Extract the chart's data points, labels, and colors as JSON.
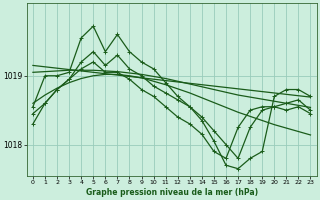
{
  "title": "Graphe pression niveau de la mer (hPa)",
  "bg_color": "#cceedd",
  "grid_color": "#99ccbb",
  "line_color": "#1a5c1a",
  "ylim": [
    1017.55,
    1020.05
  ],
  "yticks": [
    1018,
    1019
  ],
  "xlim": [
    -0.5,
    23.5
  ],
  "xticks": [
    0,
    1,
    2,
    3,
    4,
    5,
    6,
    7,
    8,
    9,
    10,
    11,
    12,
    13,
    14,
    15,
    16,
    17,
    18,
    19,
    20,
    21,
    22,
    23
  ],
  "series": [
    {
      "x": [
        0,
        1,
        2,
        3,
        4,
        5,
        6,
        7,
        8,
        9,
        10,
        11,
        12,
        13,
        14,
        15,
        16,
        17,
        18,
        19,
        20,
        21,
        22,
        23
      ],
      "y": [
        1019.15,
        1019.13,
        1019.11,
        1019.09,
        1019.07,
        1019.05,
        1019.03,
        1019.01,
        1018.99,
        1018.97,
        1018.95,
        1018.93,
        1018.91,
        1018.89,
        1018.87,
        1018.85,
        1018.83,
        1018.81,
        1018.79,
        1018.77,
        1018.75,
        1018.73,
        1018.71,
        1018.69
      ],
      "marker": null,
      "lw": 0.9
    },
    {
      "x": [
        0,
        1,
        2,
        3,
        4,
        5,
        6,
        7,
        8,
        9,
        10,
        11,
        12,
        13,
        14,
        15,
        16,
        17,
        18,
        19,
        20,
        21,
        22,
        23
      ],
      "y": [
        1019.05,
        1019.06,
        1019.07,
        1019.08,
        1019.08,
        1019.08,
        1019.07,
        1019.06,
        1019.04,
        1019.02,
        1018.99,
        1018.96,
        1018.92,
        1018.88,
        1018.84,
        1018.8,
        1018.76,
        1018.72,
        1018.69,
        1018.66,
        1018.63,
        1018.6,
        1018.57,
        1018.54
      ],
      "marker": null,
      "lw": 0.9
    },
    {
      "x": [
        0,
        1,
        2,
        3,
        4,
        5,
        6,
        7,
        8,
        9,
        10,
        11,
        12,
        13,
        14,
        15,
        16,
        17,
        18,
        19,
        20,
        21,
        22,
        23
      ],
      "y": [
        1018.6,
        1018.72,
        1018.82,
        1018.9,
        1018.96,
        1019.0,
        1019.02,
        1019.02,
        1019.0,
        1018.97,
        1018.92,
        1018.87,
        1018.81,
        1018.75,
        1018.68,
        1018.61,
        1018.54,
        1018.47,
        1018.41,
        1018.35,
        1018.29,
        1018.24,
        1018.19,
        1018.14
      ],
      "marker": null,
      "lw": 0.9
    },
    {
      "x": [
        0,
        1,
        2,
        3,
        4,
        5,
        6,
        7,
        8,
        9,
        10,
        11,
        12,
        13,
        14,
        15,
        16,
        17,
        18,
        19,
        20,
        21,
        22,
        23
      ],
      "y": [
        1018.55,
        1019.0,
        1019.0,
        1019.05,
        1019.55,
        1019.72,
        1019.35,
        1019.6,
        1019.35,
        1019.2,
        1019.1,
        1018.9,
        1018.7,
        1018.55,
        1018.35,
        1018.05,
        1017.7,
        1017.65,
        1017.8,
        1017.9,
        1018.7,
        1018.8,
        1018.8,
        1018.7
      ],
      "marker": "+",
      "lw": 0.9
    },
    {
      "x": [
        0,
        1,
        2,
        3,
        4,
        5,
        6,
        7,
        8,
        9,
        10,
        11,
        12,
        13,
        14,
        15,
        16,
        17,
        18,
        19,
        20,
        21,
        22,
        23
      ],
      "y": [
        1018.45,
        1018.6,
        1018.8,
        1018.95,
        1019.1,
        1019.2,
        1019.05,
        1019.05,
        1018.95,
        1018.8,
        1018.7,
        1018.55,
        1018.4,
        1018.3,
        1018.15,
        1017.9,
        1017.8,
        1018.25,
        1018.5,
        1018.55,
        1018.55,
        1018.5,
        1018.55,
        1018.45
      ],
      "marker": "+",
      "lw": 0.9
    },
    {
      "x": [
        0,
        1,
        2,
        3,
        4,
        5,
        6,
        7,
        8,
        9,
        10,
        11,
        12,
        13,
        14,
        15,
        16,
        17,
        18,
        19,
        20,
        21,
        22,
        23
      ],
      "y": [
        1018.3,
        1018.6,
        1018.8,
        1018.95,
        1019.2,
        1019.35,
        1019.15,
        1019.3,
        1019.1,
        1019.0,
        1018.85,
        1018.75,
        1018.65,
        1018.55,
        1018.4,
        1018.2,
        1018.0,
        1017.8,
        1018.25,
        1018.5,
        1018.55,
        1018.6,
        1018.65,
        1018.5
      ],
      "marker": "+",
      "lw": 0.9
    }
  ]
}
